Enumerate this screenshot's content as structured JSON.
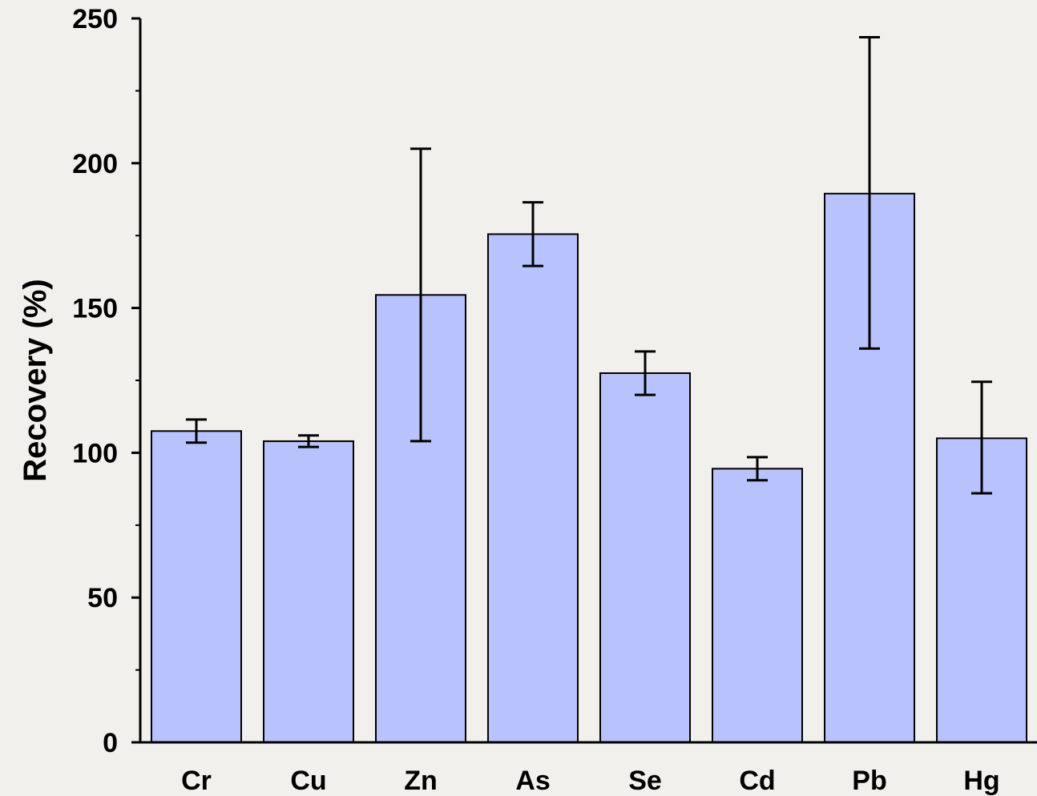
{
  "chart_data": {
    "type": "bar",
    "title": "",
    "xlabel": "",
    "ylabel": "Recovery (%)",
    "ylim": [
      0,
      250
    ],
    "y_major_ticks": [
      0,
      50,
      100,
      150,
      200,
      250
    ],
    "y_minor_step": 25,
    "grid": false,
    "legend": "none",
    "categories": [
      "Cr",
      "Cu",
      "Zn",
      "As",
      "Se",
      "Cd",
      "Pb",
      "Hg"
    ],
    "values": [
      107.5,
      104,
      154.5,
      175.5,
      127.5,
      94.5,
      189.5,
      105
    ],
    "error_low": [
      103.5,
      102,
      104,
      164.5,
      120,
      90.5,
      136,
      86
    ],
    "error_high": [
      111.5,
      106,
      205,
      186.5,
      135,
      98.5,
      243.5,
      124.5
    ],
    "bar_fill": "#b8c2fd",
    "bar_stroke": "#000000"
  }
}
